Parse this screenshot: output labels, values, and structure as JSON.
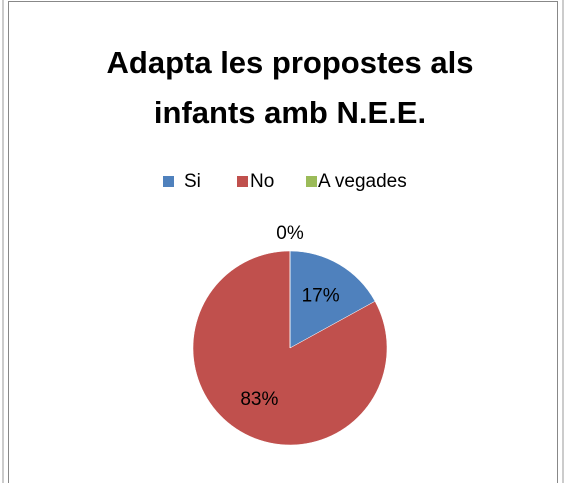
{
  "chart_data": {
    "type": "pie",
    "title": "Adapta les propostes als infants amb N.E.E.",
    "categories": [
      "Si",
      "No",
      "A vegades"
    ],
    "values": [
      17,
      83,
      0
    ],
    "value_labels": [
      "17%",
      "83%",
      "0%"
    ],
    "colors": [
      "#4f81bd",
      "#c0504d",
      "#9bbb59"
    ],
    "legend": "top"
  }
}
